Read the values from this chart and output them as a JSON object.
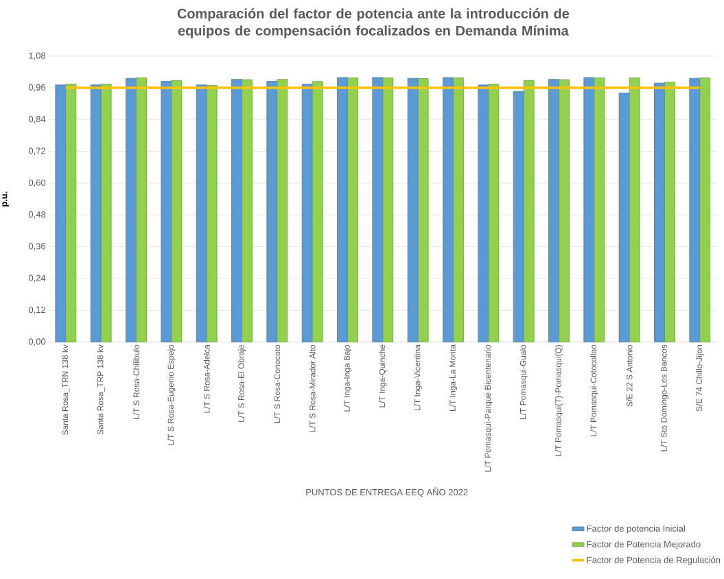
{
  "chart_data": {
    "type": "bar",
    "title": "Comparación del factor de potencia ante la introducción de equipos de compensación focalizados en Demanda Mínima",
    "xlabel": "PUNTOS  DE ENTREGA  EEQ  AÑO  2022",
    "ylabel": "p.u.",
    "categories": [
      "Santa Rosa_TRN 138 kv",
      "Santa Rosa_TRP 138 kv",
      "L/T S Rosa-Chilibulo",
      "L/T S Rosa-Eugenio Espejo",
      "L/T S Rosa-Adelca",
      "L/T S Rosa-El Obraje",
      "L/T S Rosa-Conocoto",
      "L/T S Rosa-Mirador Alto",
      "L/T Inga-Inga Bajo",
      "L/T Inga-Quinche",
      "L/T Inga-Vicentina",
      "L/T Inga-La Morita",
      "L/T Pomasqui-Parque Bicentenario",
      "L/T Pomasqui-Gualo",
      "L/T Pomasqui(T)-Pomasqui(Q)",
      "L/T Pomasqui-Cotocollao",
      "S/E 22 S Antonio",
      "L/T Sto Domingo-Los Bancos",
      "S/E 74 Chillo-Jijon"
    ],
    "series": [
      {
        "name": "Factor de potencia Inicial",
        "color": "#5b9bd5",
        "values": [
          0.971,
          0.971,
          0.996,
          0.985,
          0.971,
          0.992,
          0.985,
          0.974,
          0.999,
          0.999,
          0.996,
          0.999,
          0.971,
          0.946,
          0.992,
          0.999,
          0.94,
          0.978,
          0.996
        ]
      },
      {
        "name": "Factor de Potencia Mejorado",
        "color": "#92d050",
        "values": [
          0.974,
          0.974,
          0.998,
          0.988,
          0.969,
          0.991,
          0.992,
          0.984,
          0.998,
          0.998,
          0.995,
          0.998,
          0.974,
          0.988,
          0.991,
          0.998,
          0.998,
          0.981,
          0.998
        ]
      },
      {
        "name": "Factor de Potencia de Regulación",
        "type": "line",
        "color": "#ffc000",
        "values": [
          0.96,
          0.96,
          0.96,
          0.96,
          0.96,
          0.96,
          0.96,
          0.96,
          0.96,
          0.96,
          0.96,
          0.96,
          0.96,
          0.96,
          0.96,
          0.96,
          0.96,
          0.96,
          0.96
        ]
      }
    ],
    "ylim": [
      0,
      1.08
    ],
    "yticks": [
      {
        "value": 0,
        "label": "0,00"
      },
      {
        "value": 0.12,
        "label": "0,12"
      },
      {
        "value": 0.24,
        "label": "0,24"
      },
      {
        "value": 0.36,
        "label": "0,36"
      },
      {
        "value": 0.48,
        "label": "0,48"
      },
      {
        "value": 0.6,
        "label": "0,60"
      },
      {
        "value": 0.72,
        "label": "0,72"
      },
      {
        "value": 0.84,
        "label": "0,84"
      },
      {
        "value": 0.96,
        "label": "0,96"
      },
      {
        "value": 1.08,
        "label": "1,08"
      }
    ],
    "grid": "y",
    "legend": "bottom right"
  }
}
